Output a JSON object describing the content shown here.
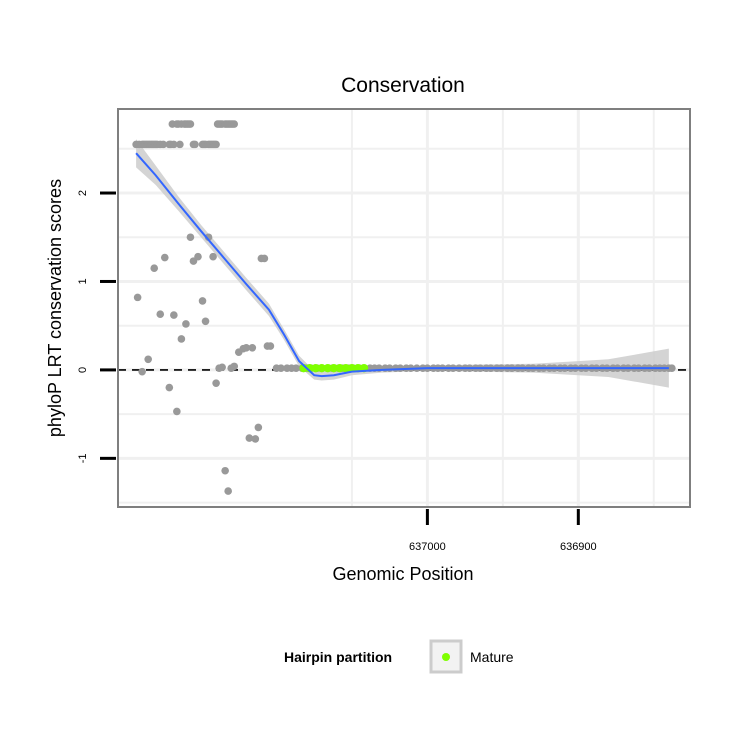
{
  "chart_data": {
    "type": "scatter",
    "title": "Conservation",
    "xlabel": "Genomic Position",
    "ylabel": "phyloP LRT conservation scores",
    "x_reversed": true,
    "xlim": [
      637205,
      636826
    ],
    "ylim": [
      -1.55,
      2.95
    ],
    "x_ticks": [
      637000,
      636900
    ],
    "x_tick_labels": [
      "637000",
      "636900"
    ],
    "y_ticks": [
      -1,
      0,
      1,
      2
    ],
    "y_tick_labels": [
      "-1",
      "0",
      "1",
      "2"
    ],
    "grid": true,
    "reference_line": {
      "y": 0,
      "style": "dashed"
    },
    "colors": {
      "points": "#999999",
      "mature": "#7fff00",
      "smooth_line": "#3366ff",
      "ribbon": "#cccccc",
      "panel_border": "#7f7f7f",
      "grid": "#f0f0f0"
    },
    "legend": {
      "title": "Hairpin partition",
      "position": "bottom",
      "entries": [
        {
          "label": "Mature",
          "color": "#7fff00"
        }
      ]
    },
    "series": [
      {
        "kind": "points",
        "x": [
          637193,
          637191,
          637189,
          637188,
          637187,
          637186,
          637185,
          637184,
          637183,
          637182,
          637181,
          637180,
          637179,
          637177,
          637175,
          637171,
          637170,
          637169,
          637168,
          637166,
          637165,
          637164,
          637163,
          637161,
          637160,
          637159,
          637158,
          637157,
          637155,
          637154,
          637149,
          637148,
          637147,
          637145,
          637144,
          637143,
          637142,
          637141,
          637140,
          637139,
          637138,
          637137,
          637136,
          637134,
          637133,
          637132,
          637131,
          637130,
          637129,
          637128,
          637192,
          637189,
          637185,
          637181,
          637177,
          637174,
          637171,
          637168,
          637166,
          637163,
          637160,
          637157,
          637155,
          637152,
          637149,
          637147,
          637145,
          637142,
          637140,
          637138,
          637136,
          637134,
          637132,
          637130,
          637128,
          637125,
          637122,
          637120,
          637118,
          637116,
          637114,
          637112,
          637110,
          637108,
          637106,
          637104
        ],
        "y": [
          2.55,
          2.55,
          2.55,
          2.55,
          2.55,
          2.55,
          2.55,
          2.55,
          2.55,
          2.55,
          2.55,
          2.55,
          2.55,
          2.55,
          2.55,
          2.55,
          2.55,
          2.78,
          2.55,
          2.78,
          2.78,
          2.55,
          2.78,
          2.78,
          2.78,
          2.78,
          2.78,
          2.78,
          2.55,
          2.55,
          2.55,
          2.55,
          2.55,
          2.55,
          2.55,
          2.55,
          2.55,
          2.55,
          2.55,
          2.78,
          2.78,
          2.78,
          2.78,
          2.78,
          2.78,
          2.78,
          2.78,
          2.78,
          2.78,
          2.78,
          0.82,
          -0.02,
          0.12,
          1.15,
          0.63,
          1.27,
          -0.2,
          0.62,
          -0.47,
          0.35,
          0.52,
          1.5,
          1.23,
          1.28,
          0.78,
          0.55,
          1.5,
          1.28,
          -0.15,
          0.02,
          0.03,
          -1.14,
          -1.37,
          0.02,
          0.04,
          0.2,
          0.24,
          0.25,
          -0.77,
          0.25,
          -0.78,
          -0.65,
          1.26,
          1.26,
          0.27,
          0.27
        ]
      },
      {
        "kind": "points",
        "x": [
          637100,
          637097,
          637093,
          637090,
          637087,
          637083,
          637080,
          637077,
          637073,
          637070,
          637066,
          637063,
          637059,
          637056,
          637052,
          637049,
          637045,
          637042,
          637038,
          637035,
          637032,
          637028,
          637025,
          637021,
          637018,
          637014,
          637011,
          637007,
          637003,
          637000,
          636996,
          636993,
          636990,
          636986,
          636983,
          636979,
          636975,
          636972,
          636968,
          636965,
          636961,
          636958,
          636954,
          636951,
          636947,
          636944,
          636940,
          636937,
          636933,
          636930,
          636926,
          636923,
          636919,
          636916,
          636912,
          636909,
          636905,
          636902,
          636898,
          636895,
          636891,
          636888,
          636884,
          636881,
          636877,
          636874,
          636870,
          636867,
          636863,
          636860,
          636856,
          636853,
          636849,
          636846,
          636843,
          636840,
          636838
        ],
        "y": [
          0.02,
          0.02,
          0.02,
          0.02,
          0.02,
          0.02,
          0.02,
          0.02,
          0.02,
          0.02,
          0.02,
          0.02,
          0.02,
          0.02,
          0.02,
          0.02,
          0.02,
          0.02,
          0.02,
          0.02,
          0.02,
          0.02,
          0.02,
          0.02,
          0.02,
          0.02,
          0.02,
          0.02,
          0.02,
          0.02,
          0.02,
          0.02,
          0.02,
          0.02,
          0.02,
          0.02,
          0.02,
          0.02,
          0.02,
          0.02,
          0.02,
          0.02,
          0.02,
          0.02,
          0.02,
          0.02,
          0.02,
          0.02,
          0.02,
          0.02,
          0.02,
          0.02,
          0.02,
          0.02,
          0.02,
          0.02,
          0.02,
          0.02,
          0.02,
          0.02,
          0.02,
          0.02,
          0.02,
          0.02,
          0.02,
          0.02,
          0.02,
          0.02,
          0.02,
          0.02,
          0.02,
          0.02,
          0.02,
          0.02,
          0.02,
          0.02,
          0.02
        ]
      },
      {
        "kind": "points",
        "name": "Mature",
        "x": [
          637082,
          637078,
          637074,
          637070,
          637066,
          637062,
          637058,
          637054,
          637050,
          637046,
          637042
        ],
        "y": [
          0.02,
          0.02,
          0.02,
          0.02,
          0.02,
          0.02,
          0.02,
          0.02,
          0.02,
          0.02,
          0.02
        ]
      },
      {
        "kind": "smooth",
        "x": [
          637193,
          637180,
          637165,
          637150,
          637135,
          637120,
          637105,
          637095,
          637085,
          637075,
          637070,
          637062,
          637050,
          637030,
          637000,
          636970,
          636930,
          636900,
          636880,
          636860,
          636840
        ],
        "y": [
          2.45,
          2.2,
          1.88,
          1.57,
          1.27,
          0.97,
          0.68,
          0.4,
          0.1,
          -0.06,
          -0.07,
          -0.06,
          -0.02,
          0.0,
          0.02,
          0.02,
          0.02,
          0.02,
          0.02,
          0.02,
          0.02
        ],
        "ribbon_halfwidth": [
          0.16,
          0.11,
          0.08,
          0.07,
          0.07,
          0.07,
          0.07,
          0.06,
          0.06,
          0.05,
          0.05,
          0.05,
          0.04,
          0.03,
          0.03,
          0.04,
          0.05,
          0.08,
          0.1,
          0.16,
          0.22
        ]
      }
    ]
  }
}
